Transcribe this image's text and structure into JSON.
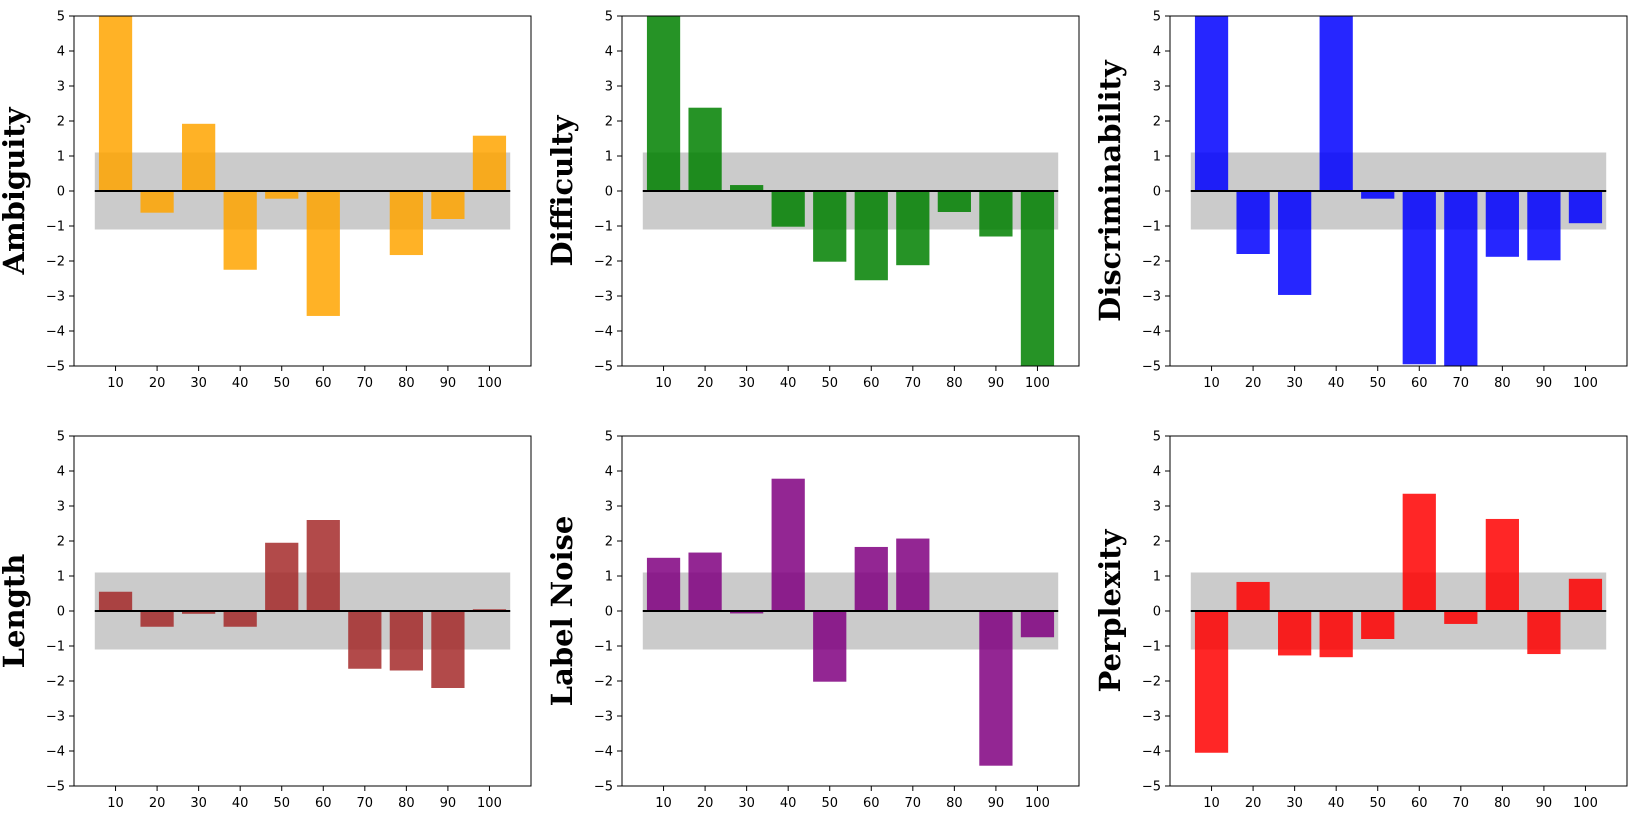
{
  "chart_data": [
    {
      "type": "bar",
      "ylabel": "Ambiguity",
      "color": "#FFA500",
      "categories": [
        10,
        20,
        30,
        40,
        50,
        60,
        70,
        80,
        90,
        100
      ],
      "values": [
        5.0,
        -0.62,
        1.92,
        -2.25,
        -0.22,
        -3.57,
        0.0,
        -1.83,
        -0.8,
        1.58
      ],
      "ylim": [
        -5,
        5
      ],
      "yticks": [
        -5,
        -4,
        -3,
        -2,
        -1,
        0,
        1,
        2,
        3,
        4,
        5
      ],
      "band": [
        -1.1,
        1.1
      ],
      "band_color": "#a9a9a9"
    },
    {
      "type": "bar",
      "ylabel": "Difficulty",
      "color": "#008000",
      "categories": [
        10,
        20,
        30,
        40,
        50,
        60,
        70,
        80,
        90,
        100
      ],
      "values": [
        5.0,
        2.38,
        0.17,
        -1.02,
        -2.02,
        -2.55,
        -2.12,
        -0.6,
        -1.3,
        -5.0
      ],
      "ylim": [
        -5,
        5
      ],
      "yticks": [
        -5,
        -4,
        -3,
        -2,
        -1,
        0,
        1,
        2,
        3,
        4,
        5
      ],
      "band": [
        -1.1,
        1.1
      ],
      "band_color": "#a9a9a9"
    },
    {
      "type": "bar",
      "ylabel": "Discriminability",
      "color": "#0000FF",
      "categories": [
        10,
        20,
        30,
        40,
        50,
        60,
        70,
        80,
        90,
        100
      ],
      "values": [
        5.0,
        -1.8,
        -2.97,
        5.0,
        -0.22,
        -4.95,
        -5.0,
        -1.88,
        -1.98,
        -0.92
      ],
      "ylim": [
        -5,
        5
      ],
      "yticks": [
        -5,
        -4,
        -3,
        -2,
        -1,
        0,
        1,
        2,
        3,
        4,
        5
      ],
      "band": [
        -1.1,
        1.1
      ],
      "band_color": "#a9a9a9"
    },
    {
      "type": "bar",
      "ylabel": "Length",
      "color": "#A52A2A",
      "categories": [
        10,
        20,
        30,
        40,
        50,
        60,
        70,
        80,
        90,
        100
      ],
      "values": [
        0.55,
        -0.45,
        -0.08,
        -0.45,
        1.95,
        2.6,
        -1.65,
        -1.7,
        -2.2,
        0.05
      ],
      "ylim": [
        -5,
        5
      ],
      "yticks": [
        -5,
        -4,
        -3,
        -2,
        -1,
        0,
        1,
        2,
        3,
        4,
        5
      ],
      "band": [
        -1.1,
        1.1
      ],
      "band_color": "#a9a9a9"
    },
    {
      "type": "bar",
      "ylabel": "Label Noise",
      "color": "#800080",
      "categories": [
        10,
        20,
        30,
        40,
        50,
        60,
        70,
        80,
        90,
        100
      ],
      "values": [
        1.52,
        1.67,
        -0.07,
        3.78,
        -2.02,
        1.83,
        2.07,
        0.0,
        -4.42,
        -0.75
      ],
      "ylim": [
        -5,
        5
      ],
      "yticks": [
        -5,
        -4,
        -3,
        -2,
        -1,
        0,
        1,
        2,
        3,
        4,
        5
      ],
      "band": [
        -1.1,
        1.1
      ],
      "band_color": "#a9a9a9"
    },
    {
      "type": "bar",
      "ylabel": "Perplexity",
      "color": "#FF0000",
      "categories": [
        10,
        20,
        30,
        40,
        50,
        60,
        70,
        80,
        90,
        100
      ],
      "values": [
        -4.05,
        0.83,
        -1.27,
        -1.32,
        -0.8,
        3.35,
        -0.37,
        2.63,
        -1.23,
        0.92
      ],
      "ylim": [
        -5,
        5
      ],
      "yticks": [
        -5,
        -4,
        -3,
        -2,
        -1,
        0,
        1,
        2,
        3,
        4,
        5
      ],
      "band": [
        -1.1,
        1.1
      ],
      "band_color": "#a9a9a9"
    }
  ]
}
